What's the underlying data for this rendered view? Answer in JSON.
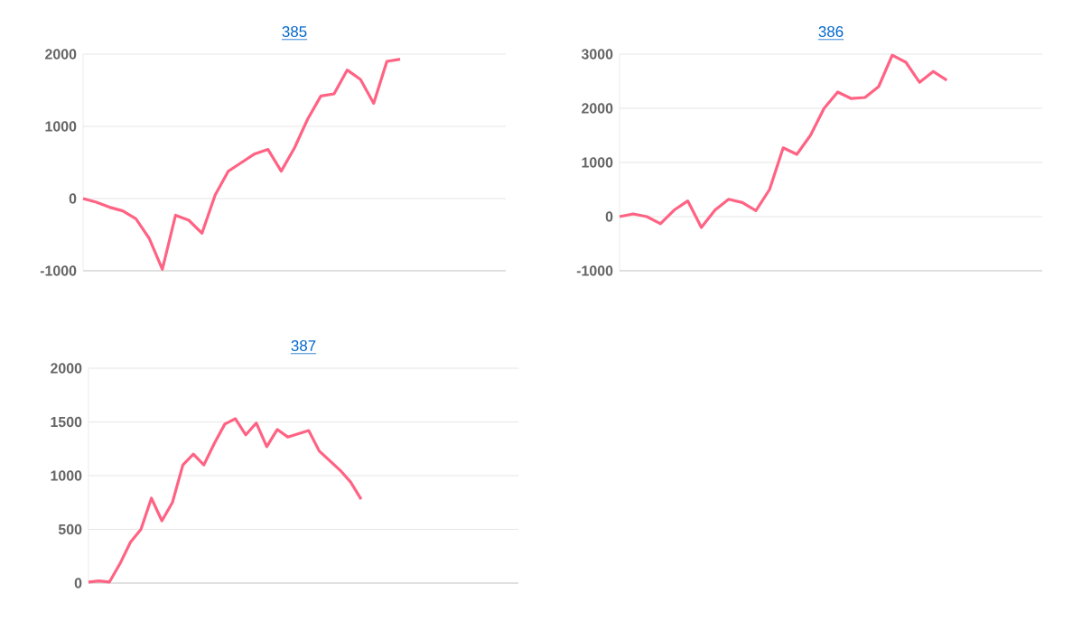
{
  "chart_data": [
    {
      "type": "line",
      "title": "385",
      "categories": [
        null,
        null,
        null,
        null,
        null,
        null,
        null,
        null,
        null,
        null,
        null,
        null,
        null,
        null,
        null,
        null,
        null,
        null,
        null,
        null,
        null,
        null,
        null,
        null,
        null,
        null,
        null,
        null,
        null,
        null,
        null,
        null,
        null
      ],
      "values": [
        0,
        -50,
        -120,
        -170,
        -280,
        -550,
        -980,
        -230,
        -300,
        -480,
        50,
        380,
        500,
        620,
        680,
        380,
        700,
        1100,
        1420,
        1450,
        1780,
        1650,
        1320,
        1900,
        1930,
        null,
        null,
        null,
        null,
        null,
        null,
        null,
        null
      ],
      "color": "#ff6384",
      "ylim": [
        -1000,
        2000
      ],
      "yticks": [
        -1000,
        0,
        1000,
        2000
      ],
      "grid": "y"
    },
    {
      "type": "line",
      "title": "386",
      "categories": [
        null,
        null,
        null,
        null,
        null,
        null,
        null,
        null,
        null,
        null,
        null,
        null,
        null,
        null,
        null,
        null,
        null,
        null,
        null,
        null,
        null,
        null,
        null,
        null,
        null,
        null,
        null,
        null,
        null,
        null,
        null,
        null
      ],
      "values": [
        0,
        50,
        0,
        -130,
        120,
        290,
        -200,
        120,
        320,
        260,
        110,
        500,
        1270,
        1150,
        1500,
        2000,
        2300,
        2180,
        2200,
        2400,
        2980,
        2850,
        2480,
        2680,
        2520,
        null,
        null,
        null,
        null,
        null,
        null,
        null
      ],
      "color": "#ff6384",
      "ylim": [
        -1000,
        3000
      ],
      "yticks": [
        -1000,
        0,
        1000,
        2000,
        3000
      ],
      "grid": "y"
    },
    {
      "type": "line",
      "title": "387",
      "categories": [
        null,
        null,
        null,
        null,
        null,
        null,
        null,
        null,
        null,
        null,
        null,
        null,
        null,
        null,
        null,
        null,
        null,
        null,
        null,
        null,
        null,
        null,
        null,
        null,
        null,
        null,
        null,
        null,
        null,
        null,
        null,
        null,
        null,
        null,
        null,
        null,
        null,
        null,
        null,
        null,
        null,
        null
      ],
      "values": [
        10,
        20,
        10,
        180,
        380,
        500,
        790,
        580,
        750,
        1100,
        1200,
        1100,
        1300,
        1480,
        1530,
        1380,
        1490,
        1270,
        1430,
        1360,
        1390,
        1420,
        1230,
        1140,
        1050,
        940,
        780,
        null,
        null,
        null,
        null,
        null,
        null,
        null,
        null,
        null,
        null,
        null,
        null,
        null,
        null,
        null
      ],
      "color": "#ff6384",
      "ylim": [
        0,
        2000
      ],
      "yticks": [
        0,
        500,
        1000,
        1500,
        2000
      ],
      "grid": "y"
    }
  ]
}
